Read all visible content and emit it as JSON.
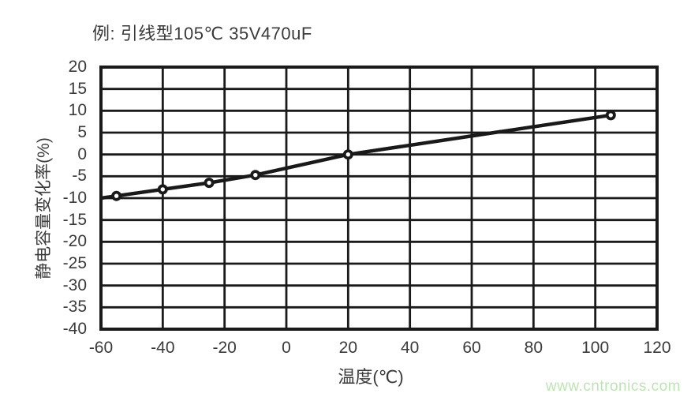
{
  "page": {
    "watermark": "www.cntronics.com"
  },
  "chart_data": {
    "type": "line",
    "title": "例: 引线型105℃ 35V470uF",
    "xlabel": "温度(℃)",
    "ylabel": "静电容量变化率(%)",
    "xlim": [
      -60,
      120
    ],
    "ylim": [
      -40,
      20
    ],
    "x_ticks": [
      -60,
      -40,
      -20,
      0,
      20,
      40,
      60,
      80,
      100,
      120
    ],
    "y_ticks": [
      20,
      15,
      10,
      5,
      0,
      -5,
      -10,
      -15,
      -20,
      -25,
      -30,
      -35,
      -40
    ],
    "grid": true,
    "legend_position": "none",
    "series": [
      {
        "name": "静电容量变化率",
        "points": [
          {
            "x": -60,
            "y": -10,
            "marker": false
          },
          {
            "x": -55,
            "y": -9.5,
            "marker": true
          },
          {
            "x": -40,
            "y": -8,
            "marker": true
          },
          {
            "x": -25,
            "y": -6.5,
            "marker": true
          },
          {
            "x": -10,
            "y": -4.7,
            "marker": true
          },
          {
            "x": 20,
            "y": 0,
            "marker": true
          },
          {
            "x": 105,
            "y": 9,
            "marker": true
          }
        ]
      }
    ],
    "colors": {
      "line": "#191919",
      "grid": "#1a1a1a",
      "border": "#1a1a1a",
      "marker_fill": "#ffffff",
      "text": "#3a3a3a",
      "watermark": "#bee3b4"
    }
  }
}
